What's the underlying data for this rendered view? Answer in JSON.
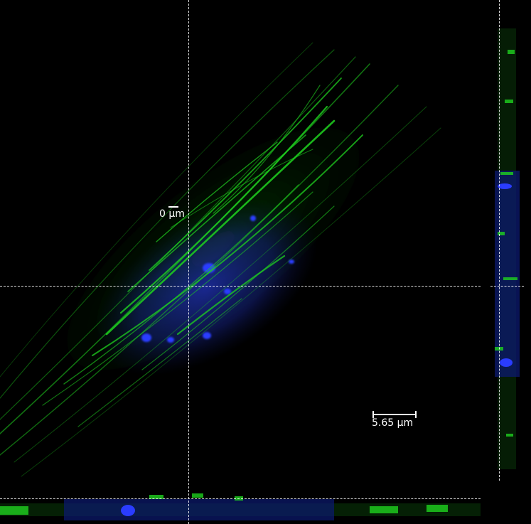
{
  "overlay": {
    "origin_label": "0 µm",
    "scale_bar_label": "5.65 µm"
  },
  "channels": {
    "actin_color": "#1fd21f",
    "nucleus_color": "#1a2cff"
  },
  "views": {
    "main": "xy-projection",
    "side_right": "yz-projection",
    "side_bottom": "xz-projection"
  }
}
